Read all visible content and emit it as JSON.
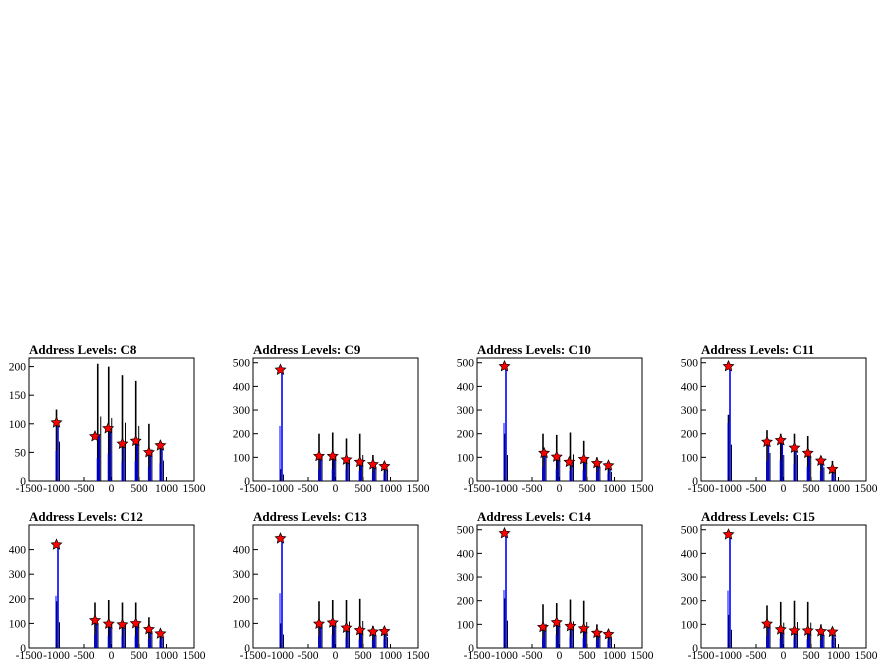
{
  "chart_data": [
    {
      "type": "bar",
      "title": "Address Levels: C8",
      "xlim": [
        -1500,
        1500
      ],
      "ylim": [
        0,
        215
      ],
      "xticks": [
        "-1500",
        "-1000",
        "-500",
        "0",
        "500",
        "1000",
        "1500"
      ],
      "yticks": [
        "0",
        "50",
        "100",
        "150",
        "200"
      ],
      "peaks_blue": [
        {
          "x": -1000,
          "y": 105
        },
        {
          "x": -250,
          "y": 80
        },
        {
          "x": -50,
          "y": 95
        },
        {
          "x": 200,
          "y": 65
        },
        {
          "x": 440,
          "y": 70
        },
        {
          "x": 680,
          "y": 50
        },
        {
          "x": 890,
          "y": 62
        }
      ],
      "peaks_black": [
        {
          "x": -1000,
          "y": 125
        },
        {
          "x": -250,
          "y": 205
        },
        {
          "x": -50,
          "y": 200
        },
        {
          "x": 200,
          "y": 185
        },
        {
          "x": 440,
          "y": 175
        },
        {
          "x": 680,
          "y": 100
        },
        {
          "x": 890,
          "y": 65
        }
      ],
      "markers": [
        {
          "x": -1000,
          "y": 102
        },
        {
          "x": -300,
          "y": 78
        },
        {
          "x": -60,
          "y": 92
        },
        {
          "x": 200,
          "y": 65
        },
        {
          "x": 440,
          "y": 70
        },
        {
          "x": 680,
          "y": 50
        },
        {
          "x": 890,
          "y": 62
        }
      ]
    },
    {
      "type": "bar",
      "title": "Address Levels: C9",
      "xlim": [
        -1500,
        1500
      ],
      "ylim": [
        0,
        520
      ],
      "xticks": [
        "-1500",
        "-1000",
        "-500",
        "0",
        "500",
        "1000",
        "1500"
      ],
      "yticks": [
        "0",
        "100",
        "200",
        "300",
        "400",
        "500"
      ],
      "peaks_blue": [
        {
          "x": -1000,
          "y": 465
        },
        {
          "x": -300,
          "y": 100
        },
        {
          "x": -50,
          "y": 100
        },
        {
          "x": 200,
          "y": 95
        },
        {
          "x": 440,
          "y": 85
        },
        {
          "x": 680,
          "y": 70
        },
        {
          "x": 890,
          "y": 60
        }
      ],
      "peaks_black": [
        {
          "x": -1000,
          "y": 50
        },
        {
          "x": -300,
          "y": 200
        },
        {
          "x": -50,
          "y": 205
        },
        {
          "x": 200,
          "y": 180
        },
        {
          "x": 440,
          "y": 200
        },
        {
          "x": 680,
          "y": 110
        },
        {
          "x": 890,
          "y": 80
        }
      ],
      "markers": [
        {
          "x": -1000,
          "y": 470
        },
        {
          "x": -300,
          "y": 105
        },
        {
          "x": -50,
          "y": 105
        },
        {
          "x": 200,
          "y": 90
        },
        {
          "x": 440,
          "y": 80
        },
        {
          "x": 680,
          "y": 70
        },
        {
          "x": 890,
          "y": 62
        }
      ]
    },
    {
      "type": "bar",
      "title": "Address Levels: C10",
      "xlim": [
        -1500,
        1500
      ],
      "ylim": [
        0,
        520
      ],
      "xticks": [
        "-1500",
        "-1000",
        "-500",
        "0",
        "500",
        "1000",
        "1500"
      ],
      "yticks": [
        "0",
        "100",
        "200",
        "300",
        "400",
        "500"
      ],
      "peaks_blue": [
        {
          "x": -1000,
          "y": 490
        },
        {
          "x": -300,
          "y": 120
        },
        {
          "x": -50,
          "y": 100
        },
        {
          "x": 200,
          "y": 85
        },
        {
          "x": 440,
          "y": 90
        },
        {
          "x": 680,
          "y": 75
        },
        {
          "x": 890,
          "y": 65
        }
      ],
      "peaks_black": [
        {
          "x": -1000,
          "y": 200
        },
        {
          "x": -300,
          "y": 200
        },
        {
          "x": -50,
          "y": 195
        },
        {
          "x": 200,
          "y": 205
        },
        {
          "x": 440,
          "y": 170
        },
        {
          "x": 680,
          "y": 100
        },
        {
          "x": 890,
          "y": 70
        }
      ],
      "markers": [
        {
          "x": -1000,
          "y": 485
        },
        {
          "x": -280,
          "y": 118
        },
        {
          "x": -50,
          "y": 102
        },
        {
          "x": 180,
          "y": 80
        },
        {
          "x": 440,
          "y": 92
        },
        {
          "x": 680,
          "y": 75
        },
        {
          "x": 890,
          "y": 65
        }
      ]
    },
    {
      "type": "bar",
      "title": "Address Levels: C11",
      "xlim": [
        -1500,
        1500
      ],
      "ylim": [
        0,
        520
      ],
      "xticks": [
        "-1500",
        "-1000",
        "-500",
        "0",
        "500",
        "1000",
        "1500"
      ],
      "yticks": [
        "0",
        "100",
        "200",
        "300",
        "400",
        "500"
      ],
      "peaks_blue": [
        {
          "x": -1000,
          "y": 490
        },
        {
          "x": -300,
          "y": 170
        },
        {
          "x": -50,
          "y": 175
        },
        {
          "x": 200,
          "y": 140
        },
        {
          "x": 440,
          "y": 120
        },
        {
          "x": 680,
          "y": 85
        },
        {
          "x": 890,
          "y": 50
        }
      ],
      "peaks_black": [
        {
          "x": -1000,
          "y": 280
        },
        {
          "x": -300,
          "y": 215
        },
        {
          "x": -50,
          "y": 200
        },
        {
          "x": 200,
          "y": 200
        },
        {
          "x": 440,
          "y": 190
        },
        {
          "x": 680,
          "y": 105
        },
        {
          "x": 890,
          "y": 85
        }
      ],
      "markers": [
        {
          "x": -1000,
          "y": 485
        },
        {
          "x": -300,
          "y": 165
        },
        {
          "x": -50,
          "y": 172
        },
        {
          "x": 200,
          "y": 140
        },
        {
          "x": 440,
          "y": 118
        },
        {
          "x": 680,
          "y": 85
        },
        {
          "x": 890,
          "y": 50
        }
      ]
    },
    {
      "type": "bar",
      "title": "Address Levels: C12",
      "xlim": [
        -1500,
        1500
      ],
      "ylim": [
        0,
        500
      ],
      "xticks": [
        "-1500",
        "-1000",
        "-500",
        "0",
        "500",
        "1000",
        "1500"
      ],
      "yticks": [
        "0",
        "100",
        "200",
        "300",
        "400"
      ],
      "peaks_blue": [
        {
          "x": -1000,
          "y": 425
        },
        {
          "x": -300,
          "y": 110
        },
        {
          "x": -50,
          "y": 100
        },
        {
          "x": 200,
          "y": 95
        },
        {
          "x": 440,
          "y": 100
        },
        {
          "x": 680,
          "y": 75
        },
        {
          "x": 890,
          "y": 60
        }
      ],
      "peaks_black": [
        {
          "x": -1000,
          "y": 190
        },
        {
          "x": -300,
          "y": 185
        },
        {
          "x": -50,
          "y": 195
        },
        {
          "x": 200,
          "y": 185
        },
        {
          "x": 440,
          "y": 185
        },
        {
          "x": 680,
          "y": 125
        },
        {
          "x": 890,
          "y": 70
        }
      ],
      "markers": [
        {
          "x": -1000,
          "y": 420
        },
        {
          "x": -300,
          "y": 112
        },
        {
          "x": -50,
          "y": 98
        },
        {
          "x": 200,
          "y": 95
        },
        {
          "x": 440,
          "y": 100
        },
        {
          "x": 680,
          "y": 76
        },
        {
          "x": 890,
          "y": 58
        }
      ]
    },
    {
      "type": "bar",
      "title": "Address Levels: C13",
      "xlim": [
        -1500,
        1500
      ],
      "ylim": [
        0,
        500
      ],
      "xticks": [
        "-1500",
        "-1000",
        "-500",
        "0",
        "500",
        "1000",
        "1500"
      ],
      "yticks": [
        "0",
        "100",
        "200",
        "300",
        "400"
      ],
      "peaks_blue": [
        {
          "x": -1000,
          "y": 445
        },
        {
          "x": -300,
          "y": 100
        },
        {
          "x": -50,
          "y": 105
        },
        {
          "x": 200,
          "y": 80
        },
        {
          "x": 440,
          "y": 70
        },
        {
          "x": 680,
          "y": 65
        },
        {
          "x": 890,
          "y": 70
        }
      ],
      "peaks_black": [
        {
          "x": -1000,
          "y": 100
        },
        {
          "x": -300,
          "y": 190
        },
        {
          "x": -50,
          "y": 195
        },
        {
          "x": 200,
          "y": 195
        },
        {
          "x": 440,
          "y": 200
        },
        {
          "x": 680,
          "y": 90
        },
        {
          "x": 890,
          "y": 80
        }
      ],
      "markers": [
        {
          "x": -1000,
          "y": 445
        },
        {
          "x": -300,
          "y": 98
        },
        {
          "x": -50,
          "y": 103
        },
        {
          "x": 200,
          "y": 82
        },
        {
          "x": 440,
          "y": 72
        },
        {
          "x": 680,
          "y": 66
        },
        {
          "x": 890,
          "y": 68
        }
      ]
    },
    {
      "type": "bar",
      "title": "Address Levels: C14",
      "xlim": [
        -1500,
        1500
      ],
      "ylim": [
        0,
        520
      ],
      "xticks": [
        "-1500",
        "-1000",
        "-500",
        "0",
        "500",
        "1000",
        "1500"
      ],
      "yticks": [
        "0",
        "100",
        "200",
        "300",
        "400",
        "500"
      ],
      "peaks_blue": [
        {
          "x": -1000,
          "y": 490
        },
        {
          "x": -300,
          "y": 90
        },
        {
          "x": -50,
          "y": 110
        },
        {
          "x": 200,
          "y": 95
        },
        {
          "x": 440,
          "y": 85
        },
        {
          "x": 680,
          "y": 65
        },
        {
          "x": 890,
          "y": 60
        }
      ],
      "peaks_black": [
        {
          "x": -1000,
          "y": 210
        },
        {
          "x": -300,
          "y": 185
        },
        {
          "x": -50,
          "y": 190
        },
        {
          "x": 200,
          "y": 205
        },
        {
          "x": 440,
          "y": 200
        },
        {
          "x": 680,
          "y": 100
        },
        {
          "x": 890,
          "y": 70
        }
      ],
      "markers": [
        {
          "x": -1000,
          "y": 485
        },
        {
          "x": -300,
          "y": 88
        },
        {
          "x": -50,
          "y": 108
        },
        {
          "x": 200,
          "y": 92
        },
        {
          "x": 440,
          "y": 82
        },
        {
          "x": 680,
          "y": 63
        },
        {
          "x": 890,
          "y": 58
        }
      ]
    },
    {
      "type": "bar",
      "title": "Address Levels: C15",
      "xlim": [
        -1500,
        1500
      ],
      "ylim": [
        0,
        520
      ],
      "xticks": [
        "-1500",
        "-1000",
        "-500",
        "0",
        "500",
        "1000",
        "1500"
      ],
      "yticks": [
        "0",
        "100",
        "200",
        "300",
        "400",
        "500"
      ],
      "peaks_blue": [
        {
          "x": -1000,
          "y": 485
        },
        {
          "x": -300,
          "y": 100
        },
        {
          "x": -50,
          "y": 80
        },
        {
          "x": 200,
          "y": 75
        },
        {
          "x": 440,
          "y": 75
        },
        {
          "x": 680,
          "y": 70
        },
        {
          "x": 890,
          "y": 70
        }
      ],
      "peaks_black": [
        {
          "x": -1000,
          "y": 140
        },
        {
          "x": -300,
          "y": 180
        },
        {
          "x": -50,
          "y": 195
        },
        {
          "x": 200,
          "y": 200
        },
        {
          "x": 440,
          "y": 195
        },
        {
          "x": 680,
          "y": 100
        },
        {
          "x": 890,
          "y": 80
        }
      ],
      "markers": [
        {
          "x": -1000,
          "y": 480
        },
        {
          "x": -300,
          "y": 102
        },
        {
          "x": -50,
          "y": 78
        },
        {
          "x": 200,
          "y": 73
        },
        {
          "x": 440,
          "y": 73
        },
        {
          "x": 680,
          "y": 70
        },
        {
          "x": 890,
          "y": 68
        }
      ]
    }
  ],
  "colors": {
    "histogram_blue": "#0000ff",
    "histogram_black": "#000000",
    "marker_fill": "#ff0000",
    "axis": "#000000",
    "background": "#ffffff"
  }
}
